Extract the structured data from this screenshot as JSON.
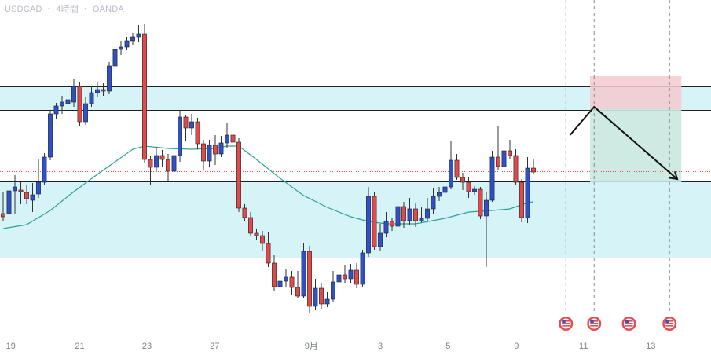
{
  "header": {
    "symbol": "USDCAD",
    "sep1": "・",
    "timeframe": "4時間",
    "sep2": "・",
    "broker": "OANDA"
  },
  "colors": {
    "up_candle": "#2e51c9",
    "down_candle": "#e04a4a",
    "wick": "#333333",
    "ma_line": "#2aa39a",
    "zone_fill": "#d6f3f8",
    "zone_border": "#222222",
    "target_fill": "#c9e8e0",
    "stop_fill": "#f5c9cf",
    "current_price_line": "#e05050",
    "event_marker": "#e34b55",
    "arrow": "#111111",
    "future_line": "#888888"
  },
  "chart_data": {
    "type": "candlestick",
    "pair": "USDCAD",
    "timeframe": "4時間",
    "x_tick_labels": [
      {
        "label": "19",
        "x": 1.3
      },
      {
        "label": "21",
        "x": 13.0
      },
      {
        "label": "23",
        "x": 24.4
      },
      {
        "label": "27",
        "x": 35.9
      },
      {
        "label": "9月",
        "x": 52.3
      },
      {
        "label": "3",
        "x": 64.0
      },
      {
        "label": "5",
        "x": 75.5
      },
      {
        "label": "9",
        "x": 87.1
      },
      {
        "label": "11",
        "x": 98.5
      },
      {
        "label": "13",
        "x": 109.9
      }
    ],
    "x_range": [
      0,
      119.6
    ],
    "y_range": [
      0,
      452
    ],
    "candles": [
      [
        0,
        272,
        276,
        245,
        282
      ],
      [
        1,
        272,
        243,
        240,
        278
      ],
      [
        2,
        243,
        238,
        223,
        273
      ],
      [
        3,
        242,
        244,
        232,
        260
      ],
      [
        4,
        245,
        253,
        236,
        260
      ],
      [
        5,
        255,
        248,
        233,
        270
      ],
      [
        6,
        247,
        232,
        202,
        252
      ],
      [
        7,
        232,
        200,
        195,
        236
      ],
      [
        8,
        200,
        145,
        141,
        204
      ],
      [
        9,
        145,
        135,
        131,
        151
      ],
      [
        10,
        135,
        130,
        122,
        145
      ],
      [
        11,
        132,
        127,
        117,
        148
      ],
      [
        12,
        130,
        110,
        101,
        136
      ],
      [
        13,
        110,
        155,
        105,
        160
      ],
      [
        14,
        155,
        132,
        123,
        159
      ],
      [
        15,
        132,
        118,
        110,
        136
      ],
      [
        16,
        118,
        114,
        104,
        124
      ],
      [
        17,
        114,
        116,
        106,
        122
      ],
      [
        18,
        116,
        84,
        79,
        120
      ],
      [
        19,
        84,
        63,
        55,
        90
      ],
      [
        20,
        63,
        60,
        52,
        70
      ],
      [
        21,
        60,
        52,
        47,
        64
      ],
      [
        22,
        52,
        47,
        42,
        57
      ],
      [
        23,
        47,
        43,
        32,
        53
      ],
      [
        24,
        43,
        203,
        30,
        208
      ],
      [
        25,
        203,
        213,
        198,
        236
      ],
      [
        26,
        213,
        198,
        187,
        219
      ],
      [
        27,
        198,
        203,
        191,
        212
      ],
      [
        28,
        203,
        218,
        196,
        230
      ],
      [
        29,
        218,
        198,
        187,
        230
      ],
      [
        30,
        198,
        149,
        140,
        206
      ],
      [
        31,
        149,
        163,
        146,
        180
      ],
      [
        32,
        163,
        155,
        145,
        172
      ],
      [
        33,
        155,
        183,
        150,
        190
      ],
      [
        34,
        183,
        205,
        178,
        216
      ],
      [
        35,
        205,
        185,
        178,
        212
      ],
      [
        36,
        185,
        196,
        172,
        210
      ],
      [
        37,
        196,
        182,
        173,
        200
      ],
      [
        38,
        182,
        172,
        157,
        188
      ],
      [
        39,
        172,
        181,
        167,
        190
      ],
      [
        40,
        181,
        265,
        176,
        270
      ],
      [
        41,
        265,
        277,
        260,
        282
      ],
      [
        42,
        277,
        297,
        270,
        300
      ],
      [
        43,
        297,
        300,
        292,
        305
      ],
      [
        44,
        300,
        310,
        294,
        320
      ],
      [
        45,
        310,
        335,
        295,
        340
      ],
      [
        46,
        335,
        365,
        325,
        370
      ],
      [
        47,
        365,
        358,
        349,
        372
      ],
      [
        48,
        358,
        353,
        343,
        366
      ],
      [
        49,
        353,
        366,
        345,
        375
      ],
      [
        50,
        366,
        377,
        345,
        380
      ],
      [
        51,
        377,
        320,
        310,
        380
      ],
      [
        52,
        320,
        390,
        313,
        398
      ],
      [
        53,
        390,
        367,
        355,
        395
      ],
      [
        54,
        367,
        387,
        360,
        393
      ],
      [
        55,
        387,
        381,
        372,
        391
      ],
      [
        56,
        381,
        359,
        345,
        384
      ],
      [
        57,
        359,
        350,
        345,
        363
      ],
      [
        58,
        350,
        355,
        338,
        360
      ],
      [
        59,
        355,
        344,
        336,
        360
      ],
      [
        60,
        344,
        362,
        335,
        367
      ],
      [
        61,
        362,
        322,
        318,
        365
      ],
      [
        62,
        322,
        250,
        238,
        327
      ],
      [
        63,
        250,
        314,
        245,
        318
      ],
      [
        64,
        314,
        297,
        285,
        320
      ],
      [
        65,
        297,
        282,
        270,
        302
      ],
      [
        66,
        282,
        288,
        277,
        294
      ],
      [
        67,
        288,
        263,
        250,
        292
      ],
      [
        68,
        263,
        281,
        257,
        290
      ],
      [
        69,
        281,
        266,
        252,
        287
      ],
      [
        70,
        266,
        281,
        258,
        289
      ],
      [
        71,
        281,
        278,
        264,
        283
      ],
      [
        72,
        278,
        266,
        252,
        282
      ],
      [
        73,
        266,
        250,
        240,
        272
      ],
      [
        74,
        250,
        245,
        238,
        256
      ],
      [
        75,
        245,
        238,
        230,
        248
      ],
      [
        76,
        238,
        204,
        180,
        241
      ],
      [
        77,
        204,
        226,
        196,
        229
      ],
      [
        78,
        226,
        232,
        220,
        242
      ],
      [
        79,
        232,
        244,
        225,
        252
      ],
      [
        80,
        244,
        241,
        237,
        248
      ],
      [
        81,
        241,
        275,
        238,
        279
      ],
      [
        82,
        275,
        255,
        245,
        340
      ],
      [
        83,
        255,
        200,
        192,
        257
      ],
      [
        84,
        200,
        212,
        160,
        217
      ],
      [
        85,
        212,
        192,
        178,
        218
      ],
      [
        86,
        192,
        198,
        178,
        203
      ],
      [
        87,
        198,
        232,
        190,
        236
      ],
      [
        88,
        232,
        277,
        228,
        283
      ],
      [
        89,
        277,
        214,
        200,
        284
      ],
      [
        90,
        214,
        219,
        202,
        222
      ]
    ],
    "moving_average": [
      [
        0,
        291
      ],
      [
        4,
        286
      ],
      [
        8,
        268
      ],
      [
        12,
        244
      ],
      [
        16,
        222
      ],
      [
        19,
        206
      ],
      [
        22,
        190
      ],
      [
        24,
        186
      ],
      [
        28,
        189
      ],
      [
        32,
        190
      ],
      [
        36,
        189
      ],
      [
        38,
        186
      ],
      [
        40,
        186
      ],
      [
        43,
        203
      ],
      [
        47,
        227
      ],
      [
        51,
        249
      ],
      [
        55,
        264
      ],
      [
        59,
        276
      ],
      [
        62,
        282
      ],
      [
        65,
        285
      ],
      [
        70,
        285
      ],
      [
        75,
        278
      ],
      [
        79,
        270
      ],
      [
        83,
        268
      ],
      [
        86,
        266
      ],
      [
        89,
        258
      ],
      [
        90,
        257
      ]
    ],
    "zones": [
      {
        "name": "resistance",
        "y_top": 110,
        "y_bottom": 140
      },
      {
        "name": "support",
        "y_top": 231,
        "y_bottom": 328
      }
    ],
    "current_price_y": 218,
    "vertical_lines_x": [
      95.5,
      100.3,
      106.2,
      113.1
    ],
    "position_box": {
      "x_start": 99.6,
      "x_end": 115.1,
      "stop_y_top": 97,
      "entry_y": 139,
      "target_y": 232
    },
    "projection_arrow": [
      [
        96.2,
        172
      ],
      [
        100.3,
        136
      ],
      [
        114.4,
        228
      ]
    ],
    "event_markers_x": [
      95.5,
      100.3,
      106.2,
      113.1
    ]
  }
}
